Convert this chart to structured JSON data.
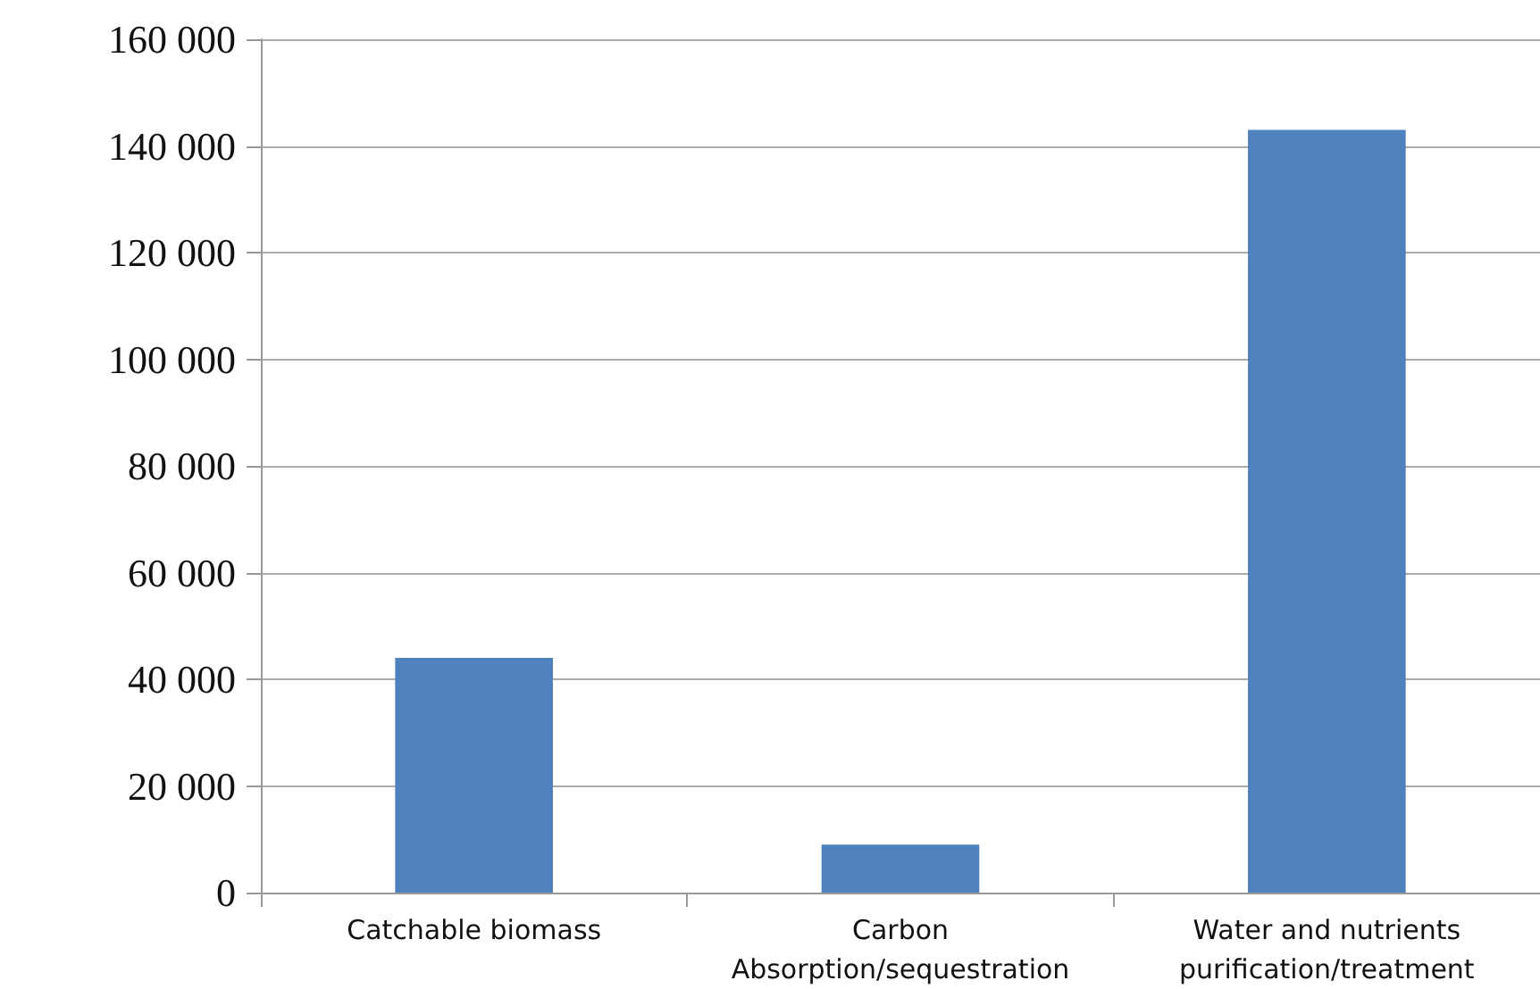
{
  "chart_data": {
    "type": "bar",
    "categories": [
      "Catchable biomass",
      "Carbon\nAbsorption/sequestration",
      "Water and nutrients\npurification/treatment"
    ],
    "values": [
      44000,
      9000,
      143000
    ],
    "color": "#4f81bd",
    "ylim": [
      0,
      160000
    ],
    "yticks": [
      {
        "value": 0,
        "label": "0"
      },
      {
        "value": 20000,
        "label": "20 000"
      },
      {
        "value": 40000,
        "label": "40 000"
      },
      {
        "value": 60000,
        "label": "60 000"
      },
      {
        "value": 80000,
        "label": "80 000"
      },
      {
        "value": 100000,
        "label": "100 000"
      },
      {
        "value": 120000,
        "label": "120 000"
      },
      {
        "value": 140000,
        "label": "140 000"
      },
      {
        "value": 160000,
        "label": "160 000"
      }
    ],
    "grid": "y"
  }
}
